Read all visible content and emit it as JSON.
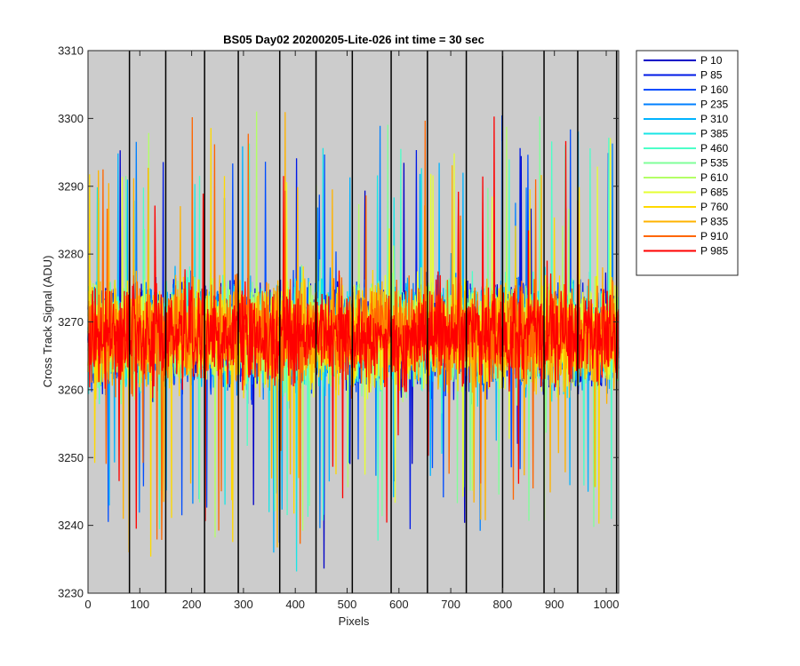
{
  "chart_data": {
    "type": "line",
    "title": "BS05 Day02 20200205-Lite-026 int time = 30 sec",
    "xlabel": "Pixels",
    "ylabel": "Cross Track Signal (ADU)",
    "xlim": [
      0,
      1024
    ],
    "ylim": [
      3230,
      3310
    ],
    "xticks": [
      0,
      100,
      200,
      300,
      400,
      500,
      600,
      700,
      800,
      900,
      1000
    ],
    "yticks": [
      3230,
      3240,
      3250,
      3260,
      3270,
      3280,
      3290,
      3300,
      3310
    ],
    "vertical_lines_x": [
      80,
      150,
      225,
      290,
      370,
      440,
      510,
      585,
      655,
      730,
      800,
      880,
      945,
      1020
    ],
    "background_color": "#cccccc",
    "legend_position": "outside-right",
    "noise_model": {
      "baseline": 3268,
      "spread_std": 8,
      "samples_per_series": 1024,
      "note": "Each series is dense per-pixel noise around the baseline; values approximated."
    },
    "series": [
      {
        "name": "P 10",
        "color": "#0000c8"
      },
      {
        "name": "P 85",
        "color": "#0019e6"
      },
      {
        "name": "P 160",
        "color": "#004dff"
      },
      {
        "name": "P 235",
        "color": "#0080ff"
      },
      {
        "name": "P 310",
        "color": "#00b3ff"
      },
      {
        "name": "P 385",
        "color": "#19e6e6"
      },
      {
        "name": "P 460",
        "color": "#4dffc8"
      },
      {
        "name": "P 535",
        "color": "#80ff99"
      },
      {
        "name": "P 610",
        "color": "#b3ff66"
      },
      {
        "name": "P 685",
        "color": "#e6ff33"
      },
      {
        "name": "P 760",
        "color": "#ffd900"
      },
      {
        "name": "P 835",
        "color": "#ffb300"
      },
      {
        "name": "P 910",
        "color": "#ff6600"
      },
      {
        "name": "P 985",
        "color": "#ff0000"
      }
    ]
  }
}
